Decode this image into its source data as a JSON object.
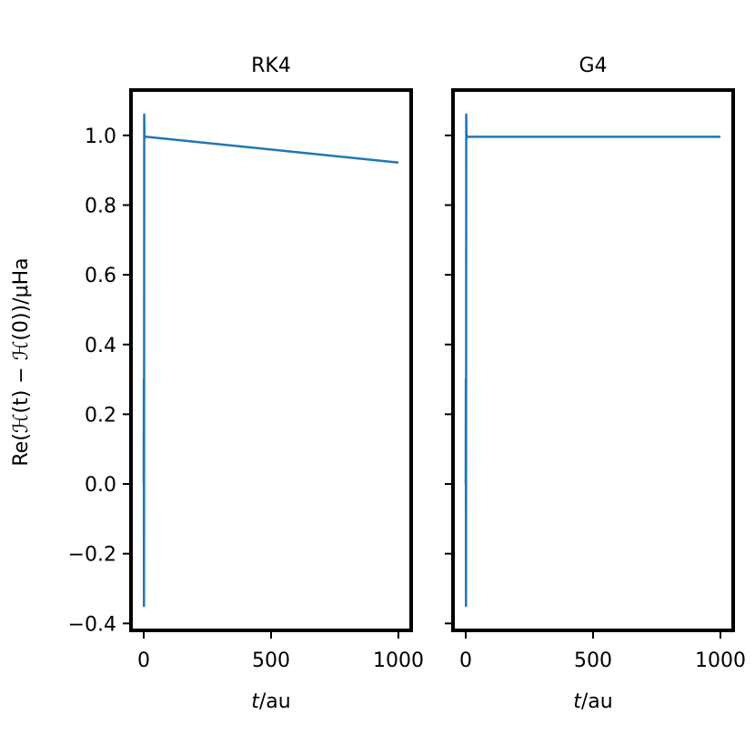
{
  "chart_data": [
    {
      "type": "line",
      "title": "RK4",
      "xlabel_italic": "t",
      "xlabel_rest": "/au",
      "ylabel": "Re(ℋ(t) − ℋ(0))/μHa",
      "xlim": [
        -50,
        1050
      ],
      "ylim": [
        -0.42,
        1.13
      ],
      "xticks": [
        0,
        500,
        1000
      ],
      "xtick_labels": [
        "0",
        "500",
        "1000"
      ],
      "yticks": [
        1.0,
        0.8,
        0.6,
        0.4,
        0.2,
        0.0,
        -0.2,
        -0.4
      ],
      "ytick_labels": [
        "1.0",
        "0.8",
        "0.6",
        "0.4",
        "0.2",
        "0.0",
        "−0.2",
        "−0.4"
      ],
      "series": [
        {
          "color": "#1f77b4",
          "x": [
            0,
            0.5,
            1,
            1.5,
            2,
            3,
            4,
            6,
            10,
            1000
          ],
          "y": [
            0.0,
            0.3,
            -0.35,
            0.2,
            1.06,
            0.99,
            0.998,
            0.997,
            0.996,
            0.922
          ]
        }
      ]
    },
    {
      "type": "line",
      "title": "G4",
      "xlabel_italic": "t",
      "xlabel_rest": "/au",
      "ylabel": "",
      "xlim": [
        -50,
        1050
      ],
      "ylim": [
        -0.42,
        1.13
      ],
      "xticks": [
        0,
        500,
        1000
      ],
      "xtick_labels": [
        "0",
        "500",
        "1000"
      ],
      "yticks": [
        1.0,
        0.8,
        0.6,
        0.4,
        0.2,
        0.0,
        -0.2,
        -0.4
      ],
      "ytick_labels": [],
      "series": [
        {
          "color": "#1f77b4",
          "x": [
            0,
            0.5,
            1,
            1.5,
            2,
            3,
            4,
            6,
            10,
            1000
          ],
          "y": [
            0.0,
            0.3,
            -0.35,
            0.2,
            1.06,
            0.99,
            0.998,
            0.997,
            0.996,
            0.996
          ]
        }
      ]
    }
  ]
}
